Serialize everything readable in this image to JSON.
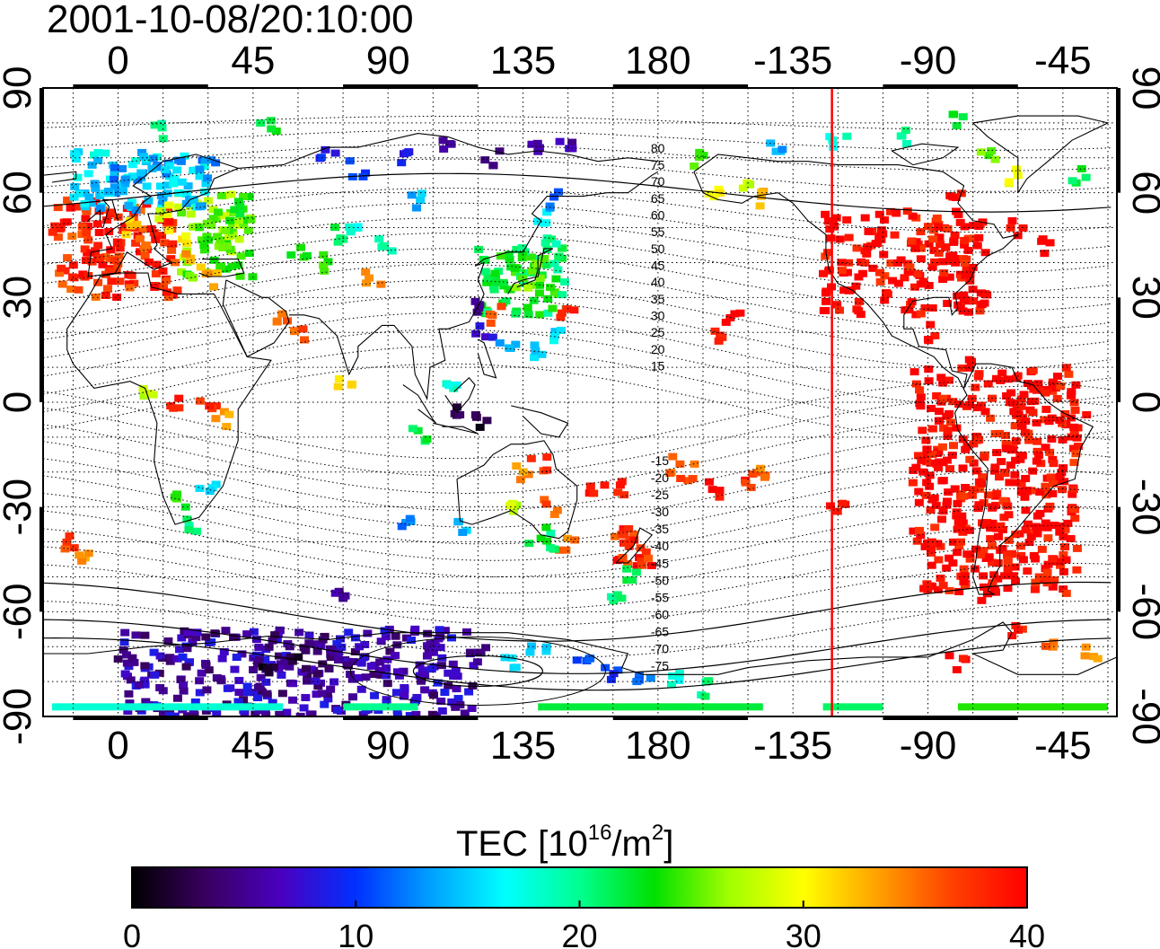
{
  "timestamp": "2001-10-08/20:10:00",
  "map": {
    "lon_ticks": [
      {
        "value": 0,
        "label": "0"
      },
      {
        "value": 45,
        "label": "45"
      },
      {
        "value": 90,
        "label": "90"
      },
      {
        "value": 135,
        "label": "135"
      },
      {
        "value": 180,
        "label": "180"
      },
      {
        "value": 225,
        "label": "-135"
      },
      {
        "value": 270,
        "label": "-90"
      },
      {
        "value": 315,
        "label": "-45"
      }
    ],
    "lat_ticks": [
      {
        "value": 90,
        "label": "90"
      },
      {
        "value": 60,
        "label": "60"
      },
      {
        "value": 30,
        "label": "30"
      },
      {
        "value": 0,
        "label": "0"
      },
      {
        "value": -30,
        "label": "-30"
      },
      {
        "value": -60,
        "label": "-60"
      },
      {
        "value": -90,
        "label": "-90"
      }
    ],
    "lon_range": [
      -25,
      333
    ],
    "lat_range": [
      -90,
      90
    ],
    "grid": true,
    "red_meridian_lon": -122,
    "contour_labels": [
      "80",
      "75",
      "70",
      "65",
      "60",
      "55",
      "50",
      "45",
      "40",
      "35",
      "30",
      "25",
      "20",
      "15",
      "-15",
      "-20",
      "-25",
      "-30",
      "-35",
      "-40",
      "-45",
      "-50",
      "-55",
      "-60",
      "-65",
      "-70",
      "-75"
    ],
    "accent_color": "#ff0000"
  },
  "colorbar": {
    "title_main": "TEC  [10",
    "title_exp": "16",
    "title_unit": "/m",
    "title_exp2": "2",
    "title_end": "]",
    "ticks": [
      {
        "value": 0,
        "label": "0"
      },
      {
        "value": 10,
        "label": "10"
      },
      {
        "value": 20,
        "label": "20"
      },
      {
        "value": 30,
        "label": "30"
      },
      {
        "value": 40,
        "label": "40"
      }
    ],
    "range": [
      0,
      40
    ],
    "stops": [
      "#000000",
      "#3a0060",
      "#4a00c0",
      "#0030ff",
      "#00a0ff",
      "#00ffff",
      "#00ff90",
      "#00e000",
      "#a0ff00",
      "#ffff00",
      "#ffa000",
      "#ff4000",
      "#ff0000"
    ]
  },
  "chart_data": {
    "type": "heatmap",
    "title": "2001-10-08/20:10:00",
    "colorbar_label": "TEC [10^16/m^2]",
    "value_range": [
      0,
      40
    ],
    "regions": [
      {
        "name": "",
        "lon": [
          -20,
          20
        ],
        "lat": [
          30,
          58
        ],
        "tec": 38
      },
      {
        "name": "",
        "lon": [
          20,
          45
        ],
        "lat": [
          35,
          60
        ],
        "tec": 26
      },
      {
        "name": "",
        "lon": [
          -15,
          30
        ],
        "lat": [
          55,
          72
        ],
        "tec": 15
      },
      {
        "name": "",
        "lon": [
          235,
          290
        ],
        "lat": [
          25,
          55
        ],
        "tec": 40
      },
      {
        "name": "",
        "lon": [
          265,
          320
        ],
        "lat": [
          -55,
          10
        ],
        "tec": 40
      },
      {
        "name": "",
        "lon": [
          120,
          150
        ],
        "lat": [
          25,
          45
        ],
        "tec": 22
      },
      {
        "name": "",
        "lon": [
          165,
          178
        ],
        "lat": [
          -47,
          -35
        ],
        "tec": 38
      },
      {
        "name": "",
        "lon": [
          0,
          120
        ],
        "lat": [
          -90,
          -65
        ],
        "tec": 6
      }
    ],
    "points": [
      {
        "lon": -20,
        "lat": 48,
        "tec": 38
      },
      {
        "lon": -10,
        "lat": 42,
        "tec": 39
      },
      {
        "lon": 0,
        "lat": 40,
        "tec": 38
      },
      {
        "lon": 5,
        "lat": 50,
        "tec": 32
      },
      {
        "lon": 10,
        "lat": 45,
        "tec": 36
      },
      {
        "lon": 15,
        "lat": 55,
        "tec": 28
      },
      {
        "lon": 20,
        "lat": 48,
        "tec": 30
      },
      {
        "lon": 25,
        "lat": 40,
        "tec": 33
      },
      {
        "lon": 30,
        "lat": 52,
        "tec": 24
      },
      {
        "lon": 35,
        "lat": 45,
        "tec": 25
      },
      {
        "lon": 40,
        "lat": 55,
        "tec": 22
      },
      {
        "lon": 30,
        "lat": 35,
        "tec": 33
      },
      {
        "lon": 0,
        "lat": 65,
        "tec": 12
      },
      {
        "lon": 10,
        "lat": 68,
        "tec": 14
      },
      {
        "lon": 20,
        "lat": 62,
        "tec": 17
      },
      {
        "lon": -5,
        "lat": 62,
        "tec": 15
      },
      {
        "lon": 30,
        "lat": 70,
        "tec": 12
      },
      {
        "lon": 15,
        "lat": 78,
        "tec": 20
      },
      {
        "lon": 50,
        "lat": 80,
        "tec": 22
      },
      {
        "lon": 60,
        "lat": 43,
        "tec": 24
      },
      {
        "lon": 70,
        "lat": 40,
        "tec": 24
      },
      {
        "lon": 75,
        "lat": 48,
        "tec": 22
      },
      {
        "lon": 80,
        "lat": 50,
        "tec": 18
      },
      {
        "lon": 90,
        "lat": 45,
        "tec": 19
      },
      {
        "lon": 85,
        "lat": 35,
        "tec": 34
      },
      {
        "lon": 100,
        "lat": 58,
        "tec": 14
      },
      {
        "lon": 70,
        "lat": 70,
        "tec": 9
      },
      {
        "lon": 80,
        "lat": 67,
        "tec": 10
      },
      {
        "lon": 95,
        "lat": 70,
        "tec": 8
      },
      {
        "lon": 110,
        "lat": 73,
        "tec": 5
      },
      {
        "lon": 125,
        "lat": 70,
        "tec": 4
      },
      {
        "lon": 140,
        "lat": 72,
        "tec": 5
      },
      {
        "lon": 150,
        "lat": 74,
        "tec": 6
      },
      {
        "lon": 125,
        "lat": 35,
        "tec": 22
      },
      {
        "lon": 130,
        "lat": 40,
        "tec": 23
      },
      {
        "lon": 135,
        "lat": 35,
        "tec": 26
      },
      {
        "lon": 140,
        "lat": 38,
        "tec": 25
      },
      {
        "lon": 145,
        "lat": 45,
        "tec": 20
      },
      {
        "lon": 140,
        "lat": 52,
        "tec": 16
      },
      {
        "lon": 145,
        "lat": 58,
        "tec": 12
      },
      {
        "lon": 120,
        "lat": 28,
        "tec": 5
      },
      {
        "lon": 125,
        "lat": 25,
        "tec": 36
      },
      {
        "lon": 122,
        "lat": 20,
        "tec": 8
      },
      {
        "lon": 130,
        "lat": 15,
        "tec": 14
      },
      {
        "lon": 140,
        "lat": 15,
        "tec": 15
      },
      {
        "lon": 145,
        "lat": 20,
        "tec": 16
      },
      {
        "lon": 150,
        "lat": 25,
        "tec": 38
      },
      {
        "lon": 110,
        "lat": 5,
        "tec": 18
      },
      {
        "lon": 115,
        "lat": -2,
        "tec": 3
      },
      {
        "lon": 120,
        "lat": -5,
        "tec": 2
      },
      {
        "lon": 100,
        "lat": -10,
        "tec": 22
      },
      {
        "lon": 95,
        "lat": -35,
        "tec": 12
      },
      {
        "lon": 115,
        "lat": -35,
        "tec": 14
      },
      {
        "lon": 130,
        "lat": -30,
        "tec": 28
      },
      {
        "lon": 135,
        "lat": -20,
        "tec": 34
      },
      {
        "lon": 140,
        "lat": -18,
        "tec": 37
      },
      {
        "lon": 145,
        "lat": -30,
        "tec": 36
      },
      {
        "lon": 150,
        "lat": -40,
        "tec": 35
      },
      {
        "lon": 145,
        "lat": -40,
        "tec": 20
      },
      {
        "lon": 140,
        "lat": -38,
        "tec": 22
      },
      {
        "lon": 160,
        "lat": -25,
        "tec": 38
      },
      {
        "lon": 168,
        "lat": -25,
        "tec": 39
      },
      {
        "lon": 172,
        "lat": -40,
        "tec": 38
      },
      {
        "lon": 175,
        "lat": -45,
        "tec": 37
      },
      {
        "lon": 170,
        "lat": -50,
        "tec": 22
      },
      {
        "lon": 165,
        "lat": -55,
        "tec": 20
      },
      {
        "lon": 185,
        "lat": -18,
        "tec": 35
      },
      {
        "lon": 190,
        "lat": -20,
        "tec": 36
      },
      {
        "lon": 200,
        "lat": -25,
        "tec": 39
      },
      {
        "lon": 210,
        "lat": -22,
        "tec": 38
      },
      {
        "lon": 215,
        "lat": -20,
        "tec": 35
      },
      {
        "lon": 205,
        "lat": 25,
        "tec": 40
      },
      {
        "lon": 200,
        "lat": 20,
        "tec": 39
      },
      {
        "lon": 20,
        "lat": 0,
        "tec": 38
      },
      {
        "lon": 30,
        "lat": -2,
        "tec": 38
      },
      {
        "lon": 35,
        "lat": -5,
        "tec": 33
      },
      {
        "lon": 10,
        "lat": 2,
        "tec": 28
      },
      {
        "lon": 30,
        "lat": -25,
        "tec": 15
      },
      {
        "lon": 25,
        "lat": -35,
        "tec": 20
      },
      {
        "lon": 20,
        "lat": -28,
        "tec": 24
      },
      {
        "lon": -15,
        "lat": -40,
        "tec": 37
      },
      {
        "lon": -10,
        "lat": -45,
        "tec": 34
      },
      {
        "lon": 55,
        "lat": 25,
        "tec": 35
      },
      {
        "lon": 60,
        "lat": 20,
        "tec": 36
      },
      {
        "lon": 75,
        "lat": 5,
        "tec": 32
      },
      {
        "lon": 195,
        "lat": 70,
        "tec": 25
      },
      {
        "lon": 200,
        "lat": 60,
        "tec": 30
      },
      {
        "lon": 210,
        "lat": 62,
        "tec": 28
      },
      {
        "lon": 215,
        "lat": 58,
        "tec": 32
      },
      {
        "lon": 220,
        "lat": 72,
        "tec": 14
      },
      {
        "lon": 240,
        "lat": 75,
        "tec": 18
      },
      {
        "lon": 260,
        "lat": 76,
        "tec": 20
      },
      {
        "lon": 280,
        "lat": 80,
        "tec": 22
      },
      {
        "lon": 290,
        "lat": 70,
        "tec": 25
      },
      {
        "lon": 300,
        "lat": 65,
        "tec": 30
      },
      {
        "lon": 320,
        "lat": 65,
        "tec": 22
      },
      {
        "lon": 280,
        "lat": 60,
        "tec": 40
      },
      {
        "lon": 300,
        "lat": 50,
        "tec": 40
      },
      {
        "lon": 310,
        "lat": 45,
        "tec": 40
      },
      {
        "lon": 270,
        "lat": 20,
        "tec": 40
      },
      {
        "lon": 285,
        "lat": 10,
        "tec": 40
      },
      {
        "lon": 305,
        "lat": 5,
        "tec": 40
      },
      {
        "lon": 320,
        "lat": -5,
        "tec": 40
      },
      {
        "lon": 320,
        "lat": -15,
        "tec": 38
      },
      {
        "lon": 300,
        "lat": -25,
        "tec": 40
      },
      {
        "lon": 290,
        "lat": -35,
        "tec": 40
      },
      {
        "lon": 295,
        "lat": -45,
        "tec": 39
      },
      {
        "lon": 290,
        "lat": -55,
        "tec": 40
      },
      {
        "lon": 300,
        "lat": -65,
        "tec": 38
      },
      {
        "lon": 310,
        "lat": -68,
        "tec": 35
      },
      {
        "lon": 325,
        "lat": -72,
        "tec": 33
      },
      {
        "lon": 280,
        "lat": -75,
        "tec": 40
      },
      {
        "lon": 240,
        "lat": -30,
        "tec": 40
      },
      {
        "lon": 60,
        "lat": -75,
        "tec": 2
      },
      {
        "lon": 50,
        "lat": -78,
        "tec": 1
      },
      {
        "lon": 75,
        "lat": -55,
        "tec": 5
      },
      {
        "lon": 90,
        "lat": -75,
        "tec": 6
      },
      {
        "lon": 105,
        "lat": -70,
        "tec": 5
      },
      {
        "lon": 120,
        "lat": -72,
        "tec": 4
      },
      {
        "lon": 130,
        "lat": -75,
        "tec": 16
      },
      {
        "lon": 140,
        "lat": -70,
        "tec": 15
      },
      {
        "lon": 155,
        "lat": -75,
        "tec": 11
      },
      {
        "lon": 165,
        "lat": -78,
        "tec": 10
      },
      {
        "lon": 175,
        "lat": -80,
        "tec": 12
      },
      {
        "lon": 185,
        "lat": -80,
        "tec": 18
      },
      {
        "lon": 195,
        "lat": -82,
        "tec": 20
      }
    ]
  }
}
